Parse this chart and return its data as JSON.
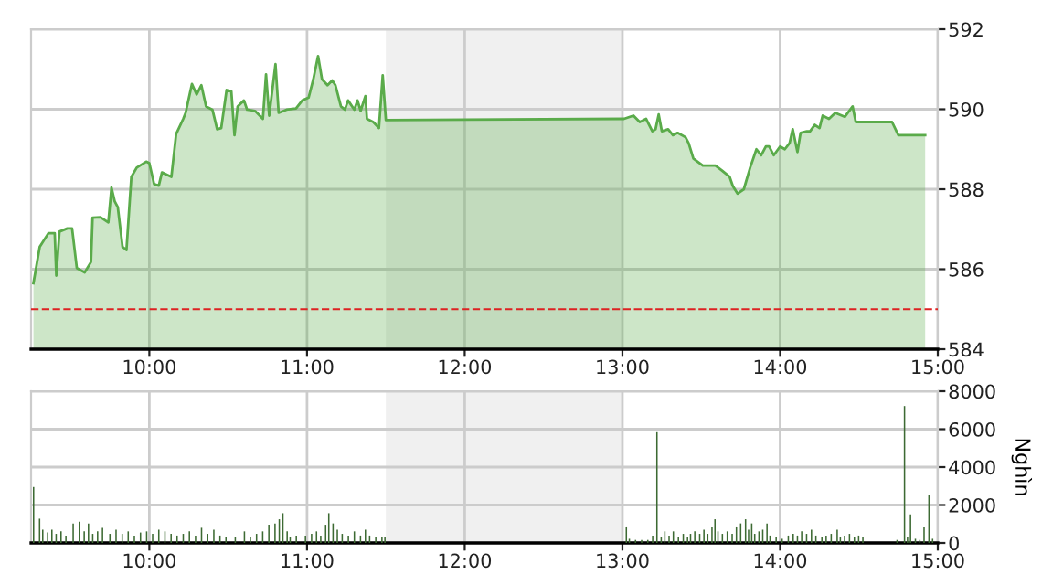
{
  "chart_data": [
    {
      "type": "area",
      "x": [
        9.265,
        9.305,
        9.36,
        9.4,
        9.41,
        9.43,
        9.48,
        9.51,
        9.54,
        9.59,
        9.63,
        9.64,
        9.69,
        9.74,
        9.76,
        9.78,
        9.8,
        9.83,
        9.855,
        9.886,
        9.92,
        9.98,
        10.0,
        10.03,
        10.06,
        10.08,
        10.14,
        10.17,
        10.215,
        10.23,
        10.27,
        10.3,
        10.33,
        10.36,
        10.4,
        10.43,
        10.456,
        10.49,
        10.52,
        10.54,
        10.56,
        10.6,
        10.62,
        10.67,
        10.72,
        10.74,
        10.76,
        10.8,
        10.82,
        10.87,
        10.93,
        10.97,
        11.01,
        11.04,
        11.07,
        11.095,
        11.13,
        11.16,
        11.18,
        11.215,
        11.24,
        11.26,
        11.3,
        11.32,
        11.34,
        11.37,
        11.38,
        11.42,
        11.456,
        11.48,
        11.5,
        13.01,
        13.07,
        13.11,
        13.15,
        13.19,
        13.21,
        13.23,
        13.25,
        13.29,
        13.32,
        13.35,
        13.4,
        13.42,
        13.45,
        13.51,
        13.59,
        13.63,
        13.68,
        13.7,
        13.73,
        13.77,
        13.81,
        13.85,
        13.88,
        13.91,
        13.93,
        13.96,
        14.0,
        14.03,
        14.06,
        14.08,
        14.11,
        14.13,
        14.17,
        14.19,
        14.22,
        14.25,
        14.27,
        14.31,
        14.35,
        14.41,
        14.46,
        14.48,
        14.71,
        14.75,
        14.92
      ],
      "series": [
        {
          "color": "#5aab4a",
          "values": [
            585.65,
            586.56,
            586.9,
            586.9,
            585.84,
            586.94,
            587.02,
            587.02,
            586.03,
            585.92,
            586.18,
            587.29,
            587.3,
            587.17,
            588.04,
            587.7,
            587.55,
            586.56,
            586.48,
            588.31,
            588.54,
            588.69,
            588.65,
            588.13,
            588.09,
            588.42,
            588.31,
            589.38,
            589.76,
            589.91,
            590.63,
            590.37,
            590.6,
            590.07,
            589.99,
            589.5,
            589.53,
            590.48,
            590.45,
            589.35,
            590.07,
            590.22,
            589.99,
            589.96,
            589.76,
            590.87,
            589.84,
            591.13,
            589.91,
            589.99,
            590.02,
            590.22,
            590.29,
            590.75,
            591.33,
            590.75,
            590.6,
            590.72,
            590.6,
            590.07,
            589.99,
            590.22,
            589.99,
            590.22,
            589.96,
            590.33,
            589.76,
            589.68,
            589.53,
            590.85,
            589.73,
            589.76,
            589.84,
            589.68,
            589.76,
            589.45,
            589.5,
            589.87,
            589.45,
            589.5,
            589.35,
            589.41,
            589.3,
            589.15,
            588.77,
            588.59,
            588.59,
            588.47,
            588.31,
            588.08,
            587.89,
            588.0,
            588.54,
            589.0,
            588.85,
            589.07,
            589.07,
            588.85,
            589.07,
            589.0,
            589.15,
            589.5,
            588.93,
            589.41,
            589.45,
            589.45,
            589.61,
            589.53,
            589.84,
            589.76,
            589.91,
            589.81,
            590.07,
            589.68,
            589.68,
            589.35,
            589.35
          ]
        }
      ],
      "xlim": [
        9.25,
        15
      ],
      "xticks": [
        {
          "value": 10,
          "label": "10:00"
        },
        {
          "value": 11,
          "label": "11:00"
        },
        {
          "value": 12,
          "label": "12:00"
        },
        {
          "value": 13,
          "label": "13:00"
        },
        {
          "value": 14,
          "label": "14:00"
        },
        {
          "value": 15,
          "label": "15:00"
        }
      ],
      "ylim": [
        584,
        592
      ],
      "yticks": [
        584,
        586,
        588,
        590,
        592
      ],
      "grid": true,
      "ref_lines": [
        {
          "axis": "y",
          "value": 585,
          "color": "#dd2222",
          "line_style": "dashed"
        }
      ],
      "bands": [
        {
          "axis": "x",
          "from": 11.5,
          "to": 13,
          "color": "#f0f0f0"
        }
      ]
    },
    {
      "type": "bar",
      "ylabel": "Nghìn",
      "x": [
        9.266,
        9.304,
        9.324,
        9.355,
        9.382,
        9.409,
        9.44,
        9.471,
        9.517,
        9.556,
        9.587,
        9.614,
        9.641,
        9.672,
        9.703,
        9.75,
        9.789,
        9.828,
        9.866,
        9.905,
        9.944,
        9.983,
        10.021,
        10.06,
        10.099,
        10.138,
        10.176,
        10.215,
        10.254,
        10.293,
        10.331,
        10.37,
        10.409,
        10.448,
        10.486,
        10.545,
        10.603,
        10.641,
        10.68,
        10.719,
        10.758,
        10.797,
        10.824,
        10.847,
        10.874,
        10.893,
        10.932,
        10.99,
        11.029,
        11.06,
        11.087,
        11.118,
        11.138,
        11.165,
        11.192,
        11.223,
        11.262,
        11.3,
        11.339,
        11.37,
        11.397,
        11.436,
        11.475,
        11.494,
        13.025,
        13.044,
        13.083,
        13.122,
        13.161,
        13.192,
        13.219,
        13.246,
        13.269,
        13.296,
        13.323,
        13.355,
        13.386,
        13.413,
        13.432,
        13.459,
        13.49,
        13.517,
        13.541,
        13.568,
        13.587,
        13.606,
        13.634,
        13.665,
        13.696,
        13.723,
        13.75,
        13.781,
        13.8,
        13.82,
        13.839,
        13.866,
        13.89,
        13.917,
        13.936,
        13.975,
        14.013,
        14.052,
        14.083,
        14.11,
        14.137,
        14.168,
        14.199,
        14.227,
        14.265,
        14.292,
        14.324,
        14.362,
        14.382,
        14.409,
        14.44,
        14.471,
        14.498,
        14.525,
        14.742,
        14.789,
        14.808,
        14.827,
        14.858,
        14.886,
        14.913,
        14.944,
        14.967
      ],
      "series": [
        {
          "color": "#3d6a33",
          "values": [
            2950,
            1280,
            700,
            550,
            700,
            480,
            610,
            390,
            1030,
            1120,
            610,
            1030,
            480,
            610,
            800,
            480,
            700,
            480,
            610,
            390,
            550,
            610,
            480,
            700,
            610,
            480,
            390,
            480,
            610,
            390,
            800,
            480,
            700,
            390,
            320,
            320,
            610,
            320,
            480,
            610,
            960,
            1030,
            1250,
            1570,
            610,
            320,
            390,
            390,
            480,
            610,
            390,
            960,
            1570,
            1030,
            700,
            480,
            390,
            610,
            390,
            700,
            390,
            290,
            290,
            290,
            870,
            220,
            160,
            160,
            160,
            390,
            5840,
            290,
            610,
            390,
            610,
            290,
            480,
            290,
            480,
            610,
            480,
            700,
            480,
            870,
            1250,
            610,
            480,
            610,
            480,
            870,
            1030,
            1250,
            700,
            1030,
            480,
            610,
            700,
            1030,
            390,
            290,
            220,
            390,
            480,
            390,
            610,
            480,
            700,
            390,
            290,
            390,
            480,
            700,
            290,
            390,
            480,
            290,
            390,
            290,
            160,
            7220,
            290,
            1510,
            220,
            160,
            870,
            2540,
            220
          ]
        }
      ],
      "xlim": [
        9.25,
        15
      ],
      "xticks": [
        {
          "value": 10,
          "label": "10:00"
        },
        {
          "value": 11,
          "label": "11:00"
        },
        {
          "value": 12,
          "label": "12:00"
        },
        {
          "value": 13,
          "label": "13:00"
        },
        {
          "value": 14,
          "label": "14:00"
        },
        {
          "value": 15,
          "label": "15:00"
        }
      ],
      "ylim": [
        0,
        8000
      ],
      "yticks": [
        0,
        2000,
        4000,
        6000,
        8000
      ],
      "grid": true,
      "bands": [
        {
          "axis": "x",
          "from": 11.5,
          "to": 13,
          "color": "#f0f0f0"
        }
      ]
    }
  ]
}
